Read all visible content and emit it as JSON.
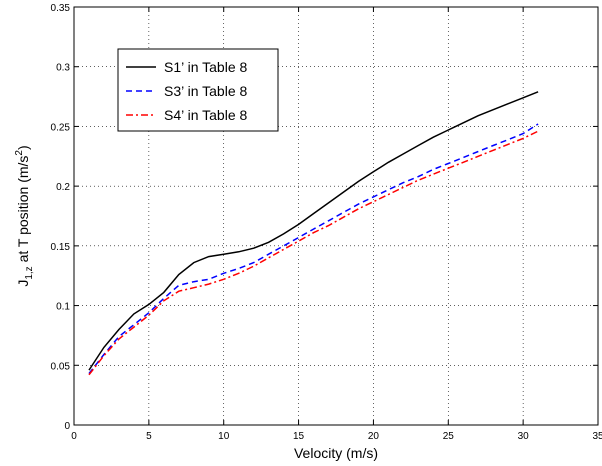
{
  "chart_data": {
    "type": "line",
    "xlabel": "Velocity (m/s)",
    "ylabel": {
      "main": "J",
      "sub": "1,z",
      "mid": " at T position (m/s",
      "sup": "2",
      "end": ")"
    },
    "xlim": [
      0,
      35
    ],
    "ylim": [
      0,
      0.35
    ],
    "x_ticks": [
      "0",
      "5",
      "10",
      "15",
      "20",
      "25",
      "30",
      "35"
    ],
    "y_ticks": [
      "0",
      "0.05",
      "0.1",
      "0.15",
      "0.2",
      "0.25",
      "0.3",
      "0.35"
    ],
    "grid": true,
    "legend_position": "top-left",
    "x": [
      1,
      2,
      3,
      4,
      5,
      6,
      7,
      8,
      9,
      10,
      11,
      12,
      13,
      14,
      15,
      16,
      17,
      18,
      19,
      20,
      21,
      22,
      23,
      24,
      25,
      26,
      27,
      28,
      29,
      30,
      31
    ],
    "series": [
      {
        "name": "S1’ in Table 8",
        "color": "#000000",
        "dash": "solid",
        "values": [
          0.046,
          0.065,
          0.08,
          0.093,
          0.101,
          0.111,
          0.126,
          0.136,
          0.141,
          0.143,
          0.145,
          0.148,
          0.153,
          0.16,
          0.168,
          0.177,
          0.186,
          0.195,
          0.204,
          0.212,
          0.22,
          0.227,
          0.234,
          0.241,
          0.247,
          0.253,
          0.259,
          0.264,
          0.269,
          0.274,
          0.279
        ]
      },
      {
        "name": "S3’ in Table 8",
        "color": "#0000ff",
        "dash": "dashed",
        "values": [
          0.043,
          0.059,
          0.074,
          0.084,
          0.094,
          0.106,
          0.117,
          0.12,
          0.122,
          0.127,
          0.131,
          0.136,
          0.143,
          0.15,
          0.157,
          0.164,
          0.171,
          0.178,
          0.185,
          0.191,
          0.197,
          0.203,
          0.208,
          0.214,
          0.219,
          0.224,
          0.229,
          0.234,
          0.239,
          0.244,
          0.252
        ]
      },
      {
        "name": "S4’ in Table 8",
        "color": "#ff0000",
        "dash": "dashdot",
        "values": [
          0.042,
          0.058,
          0.072,
          0.082,
          0.092,
          0.104,
          0.112,
          0.115,
          0.118,
          0.122,
          0.127,
          0.133,
          0.14,
          0.147,
          0.154,
          0.161,
          0.167,
          0.174,
          0.181,
          0.187,
          0.193,
          0.199,
          0.205,
          0.21,
          0.215,
          0.22,
          0.225,
          0.23,
          0.235,
          0.24,
          0.246
        ]
      }
    ]
  }
}
